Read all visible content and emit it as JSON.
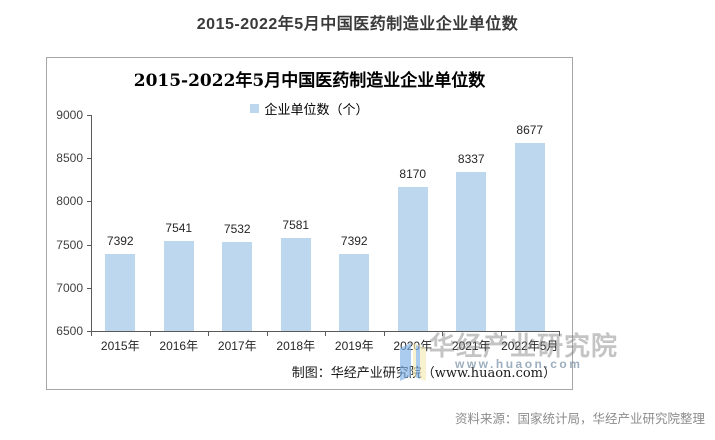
{
  "page": {
    "title": "2015-2022年5月中国医药制造业企业单位数"
  },
  "chart": {
    "title": "2015-2022年5月中国医药制造业企业单位数",
    "legend_label": "企业单位数（个）",
    "credit": "制图：华经产业研究院（www.huaon.com）"
  },
  "watermark": {
    "name": "华经产业研究院",
    "url": "www.huaon.com"
  },
  "footer": {
    "source": "资料来源：国家统计局，华经产业研究院整理"
  },
  "chart_data": {
    "type": "bar",
    "title": "2015-2022年5月中国医药制造业企业单位数",
    "legend": [
      "企业单位数（个）"
    ],
    "legend_position": "top",
    "categories": [
      "2015年",
      "2016年",
      "2017年",
      "2018年",
      "2019年",
      "2020年",
      "2021年",
      "2022年5月"
    ],
    "values": [
      7392,
      7541,
      7532,
      7581,
      7392,
      8170,
      8337,
      8677
    ],
    "ylim": [
      6500,
      9000
    ],
    "y_ticks": [
      9000,
      8500,
      8000,
      7500,
      7000,
      6500
    ],
    "grid": false,
    "bar_color": "#BDD7EE",
    "axis_color": "#595959"
  }
}
